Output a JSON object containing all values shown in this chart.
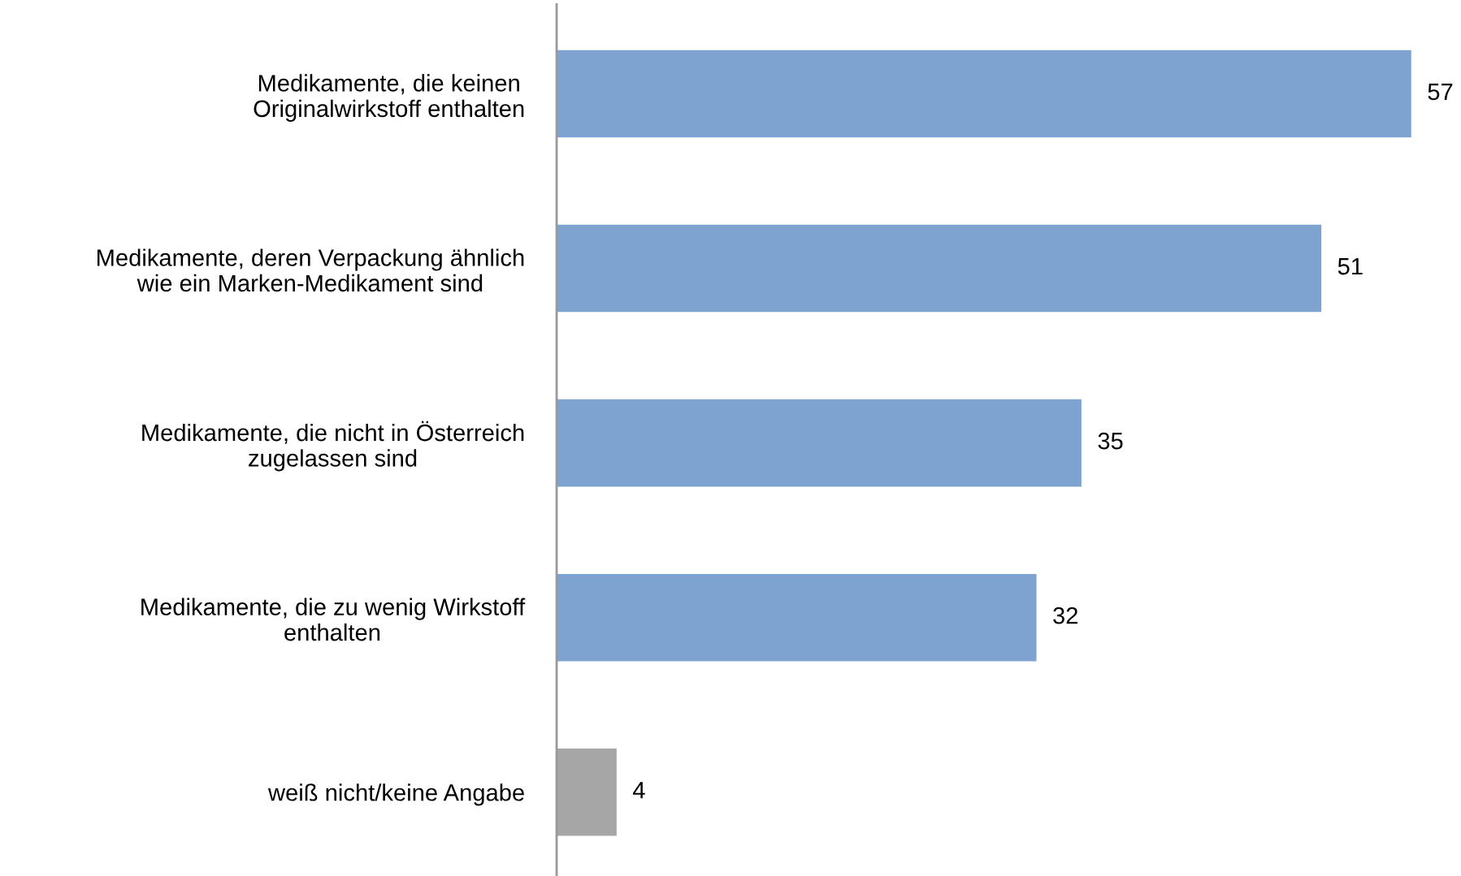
{
  "chart_data": {
    "type": "bar",
    "orientation": "horizontal",
    "categories": [
      "Medikamente, die keinen\nOriginalwirkstoff enthalten",
      "Medikamente, deren Verpackung ähnlich\nwie ein Marken-Medikament sind",
      "Medikamente, die nicht in Österreich\nzugelassen sind",
      "Medikamente, die zu wenig Wirkstoff\nenthalten",
      "weiß nicht/keine Angabe"
    ],
    "values": [
      57,
      51,
      35,
      32,
      4
    ],
    "colors": [
      "#7fa3d0",
      "#7fa3d0",
      "#7fa3d0",
      "#7fa3d0",
      "#a6a6a6"
    ],
    "data_labels": true
  }
}
